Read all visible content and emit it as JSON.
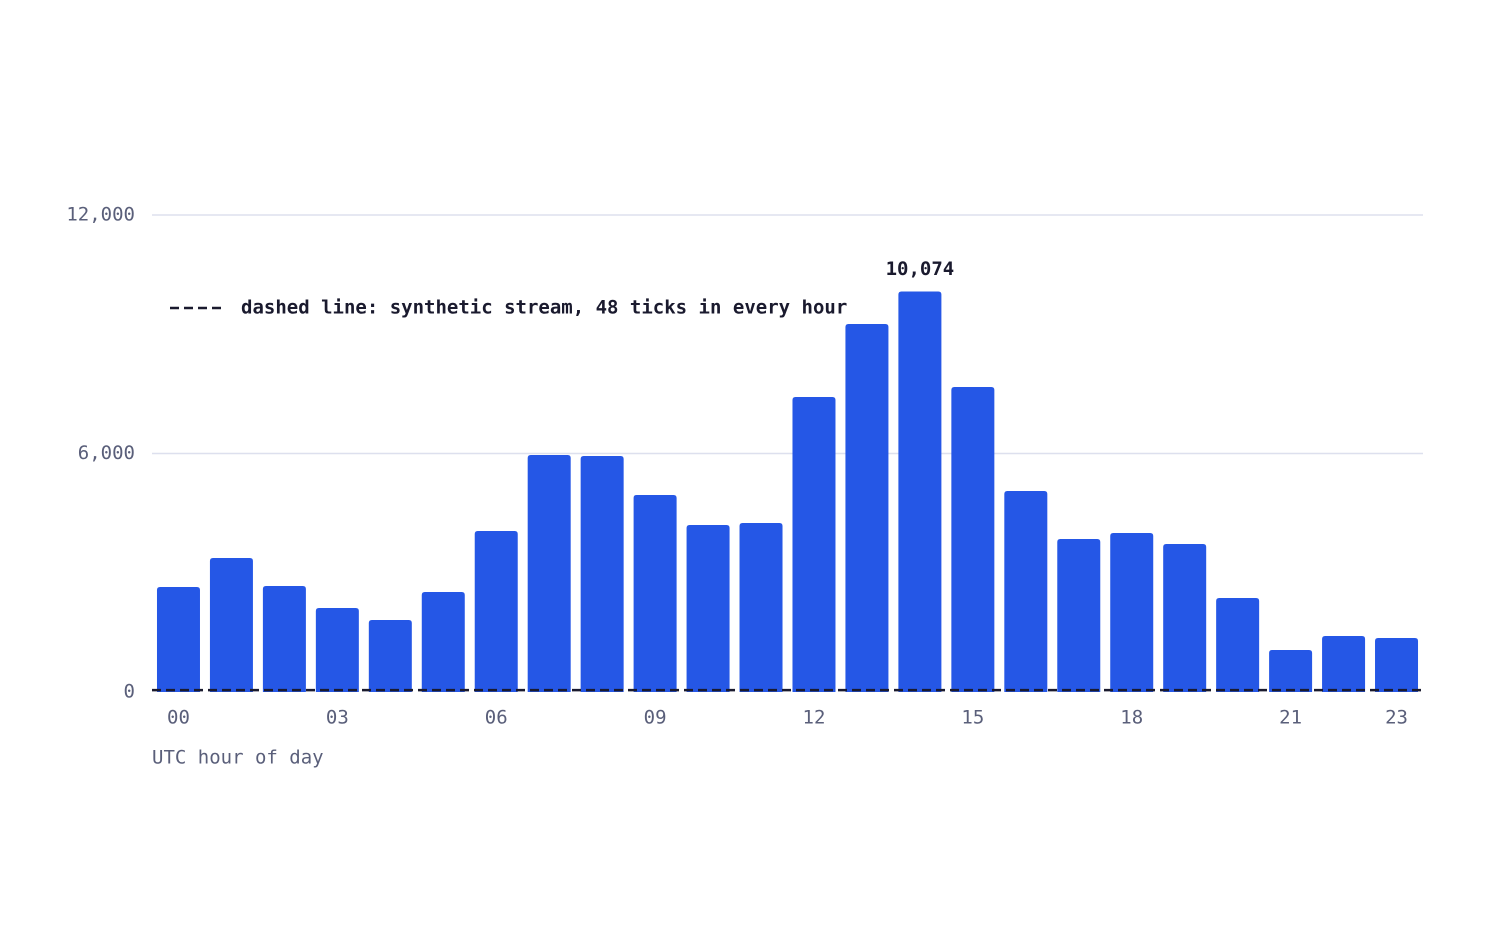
{
  "chart_data": {
    "type": "bar",
    "x_label": "UTC hour of day",
    "categories": [
      "00",
      null,
      null,
      "03",
      null,
      null,
      "06",
      null,
      null,
      "09",
      null,
      null,
      "12",
      null,
      null,
      "15",
      null,
      null,
      "18",
      null,
      null,
      "21",
      null,
      "23"
    ],
    "values": [
      2642,
      3371,
      2667,
      2113,
      1811,
      2516,
      4050,
      5962,
      5937,
      4956,
      4201,
      4252,
      7421,
      9258,
      10074,
      7673,
      5057,
      3849,
      4000,
      3723,
      2365,
      1057,
      1409,
      1358
    ],
    "value_labels": [
      null,
      null,
      null,
      null,
      null,
      null,
      null,
      null,
      null,
      null,
      null,
      null,
      null,
      null,
      "10,074",
      null,
      null,
      null,
      null,
      null,
      null,
      null,
      null,
      null
    ],
    "color": "#2557e6",
    "ylim": [
      0,
      12000
    ],
    "yticks": [
      0,
      {
        "value": 6000,
        "label": "6,000"
      },
      {
        "value": 12000,
        "label": "12,000"
      }
    ],
    "grid": true,
    "reference_line": {
      "value": 48,
      "label": "dashed line: synthetic stream, 48 ticks in every hour",
      "color": "#1a1a2e"
    }
  }
}
